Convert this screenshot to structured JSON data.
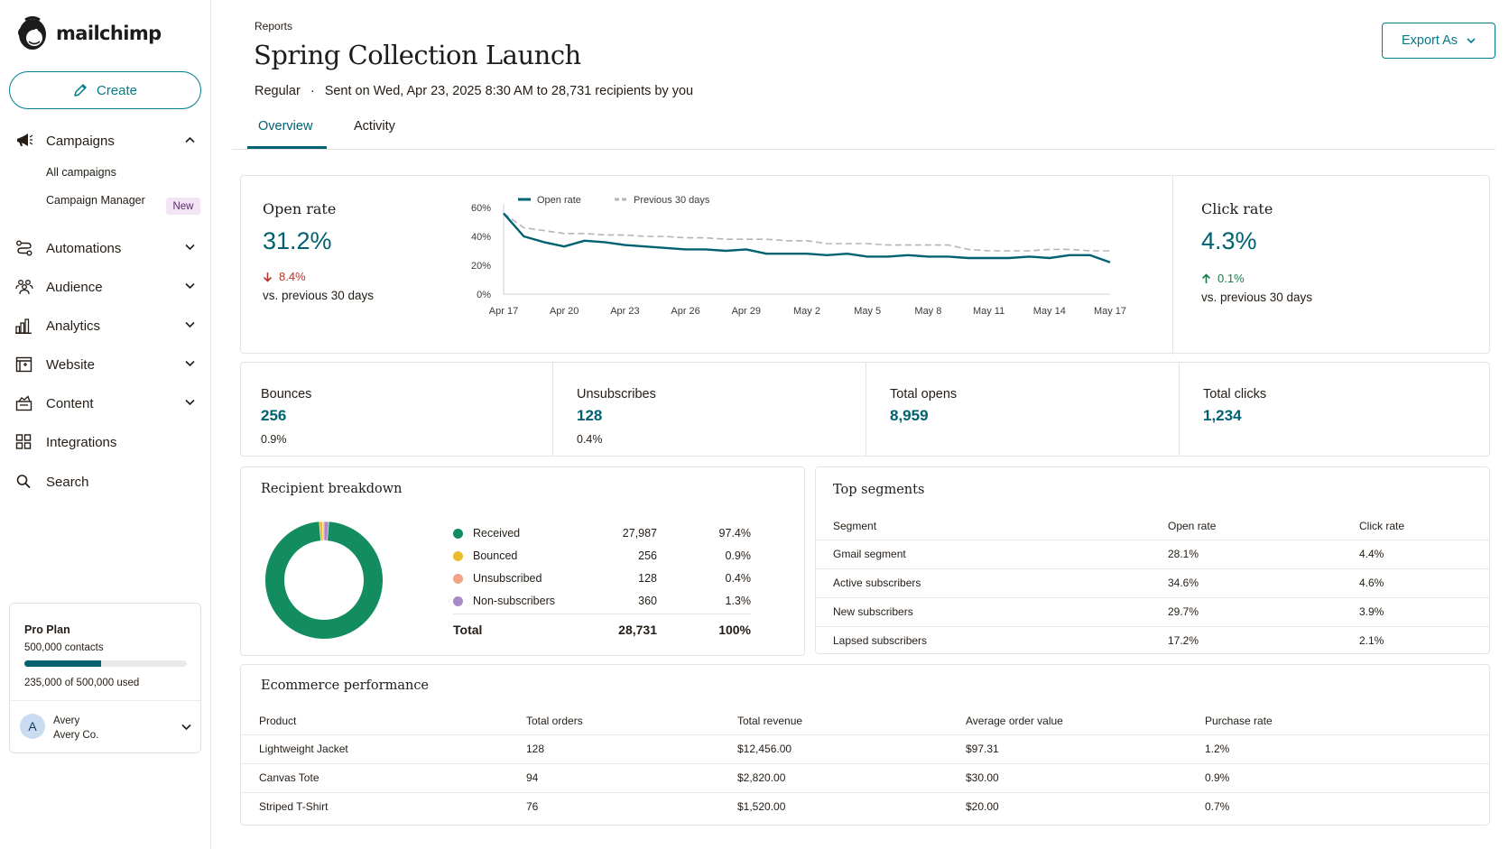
{
  "app": {
    "name": "mailchimp"
  },
  "sidebar": {
    "create_label": "Create",
    "items": [
      {
        "label": "Campaigns",
        "icon": "megaphone-icon",
        "expanded": true
      },
      {
        "label": "Automations",
        "icon": "automation-icon"
      },
      {
        "label": "Audience",
        "icon": "audience-icon"
      },
      {
        "label": "Analytics",
        "icon": "bar-chart-icon"
      },
      {
        "label": "Website",
        "icon": "website-icon"
      },
      {
        "label": "Content",
        "icon": "content-icon"
      },
      {
        "label": "Integrations",
        "icon": "grid-icon"
      },
      {
        "label": "Search",
        "icon": "search-icon"
      }
    ],
    "campaign_subitems": [
      {
        "label": "All campaigns"
      },
      {
        "label": "Campaign Manager",
        "badge": "New"
      }
    ],
    "plan": {
      "name": "Pro Plan",
      "contacts": "500,000 contacts",
      "usage_fraction": 0.47,
      "used_text": "235,000 of 500,000 used"
    },
    "user": {
      "initial": "A",
      "name": "Avery",
      "org": "Avery Co."
    }
  },
  "header": {
    "breadcrumb": "Reports",
    "title": "Spring Collection Launch",
    "type": "Regular",
    "separator": "·",
    "sent_info": "Sent on Wed, Apr 23, 2025 8:30 AM to 28,731 recipients by you",
    "export_label": "Export As",
    "tabs": [
      {
        "label": "Overview",
        "active": true
      },
      {
        "label": "Activity",
        "active": false
      }
    ]
  },
  "open_rate": {
    "title": "Open rate",
    "value": "31.2%",
    "delta": "8.4%",
    "delta_direction": "down",
    "comparison": "vs. previous 30 days"
  },
  "click_rate": {
    "title": "Click rate",
    "value": "4.3%",
    "delta": "0.1%",
    "delta_direction": "up",
    "comparison": "vs. previous 30 days"
  },
  "chart_data": {
    "type": "line",
    "x": [
      "Apr 17",
      "Apr 18",
      "Apr 19",
      "Apr 20",
      "Apr 21",
      "Apr 22",
      "Apr 23",
      "Apr 24",
      "Apr 25",
      "Apr 26",
      "Apr 27",
      "Apr 28",
      "Apr 29",
      "Apr 30",
      "May 1",
      "May 2",
      "May 3",
      "May 4",
      "May 5",
      "May 6",
      "May 7",
      "May 8",
      "May 9",
      "May 10",
      "May 11",
      "May 12",
      "May 13",
      "May 14",
      "May 15",
      "May 16",
      "May 17"
    ],
    "x_ticks": [
      "Apr 17",
      "Apr 20",
      "Apr 23",
      "Apr 26",
      "Apr 29",
      "May 2",
      "May 5",
      "May 8",
      "May 11",
      "May 14",
      "May 17"
    ],
    "y_ticks": [
      "0%",
      "20%",
      "40%",
      "60%"
    ],
    "ylim": [
      0,
      60
    ],
    "series": [
      {
        "name": "Open rate",
        "color": "#006170",
        "values": [
          56,
          40,
          36,
          33,
          37,
          36,
          34,
          33,
          32,
          31,
          31,
          30,
          31,
          28,
          28,
          28,
          27,
          28,
          26,
          26,
          27,
          26,
          26,
          25,
          25,
          25,
          26,
          25,
          27,
          27,
          22
        ]
      },
      {
        "name": "Previous 30 days",
        "color": "#b5b5b5",
        "dashed": true,
        "values": [
          56,
          46,
          44,
          42,
          42,
          41,
          41,
          40,
          40,
          39,
          39,
          38,
          38,
          38,
          37,
          37,
          35,
          35,
          35,
          34,
          34,
          34,
          34,
          31,
          30,
          30,
          30,
          31,
          31,
          30,
          30
        ]
      }
    ],
    "legend_position": "top-left"
  },
  "stats": [
    {
      "label": "Bounces",
      "value": "256",
      "pct": "0.9%"
    },
    {
      "label": "Unsubscribes",
      "value": "128",
      "pct": "0.4%"
    },
    {
      "label": "Total opens",
      "value": "8,959"
    },
    {
      "label": "Total clicks",
      "value": "1,234"
    }
  ],
  "recipients": {
    "title": "Recipient breakdown",
    "rows": [
      {
        "label": "Received",
        "count": "27,987",
        "pct": "97.4%",
        "value": 97.4,
        "color": "#138d5f"
      },
      {
        "label": "Bounced",
        "count": "256",
        "pct": "0.9%",
        "value": 0.9,
        "color": "#e9bd2e"
      },
      {
        "label": "Unsubscribed",
        "count": "128",
        "pct": "0.4%",
        "value": 0.4,
        "color": "#f0a386"
      },
      {
        "label": "Non-subscribers",
        "count": "360",
        "pct": "1.3%",
        "value": 1.3,
        "color": "#a98ac9"
      }
    ],
    "total_label": "Total",
    "total_count": "28,731",
    "total_pct": "100%"
  },
  "segments": {
    "title": "Top segments",
    "headers": [
      "Segment",
      "Open rate",
      "Click rate"
    ],
    "rows": [
      [
        "Gmail segment",
        "28.1%",
        "4.4%"
      ],
      [
        "Active subscribers",
        "34.6%",
        "4.6%"
      ],
      [
        "New subscribers",
        "29.7%",
        "3.9%"
      ],
      [
        "Lapsed subscribers",
        "17.2%",
        "2.1%"
      ]
    ]
  },
  "ecommerce": {
    "title": "Ecommerce performance",
    "headers": [
      "Product",
      "Total orders",
      "Total revenue",
      "Average order value",
      "Purchase rate"
    ],
    "rows": [
      [
        "Lightweight Jacket",
        "128",
        "$12,456.00",
        "$97.31",
        "1.2%"
      ],
      [
        "Canvas Tote",
        "94",
        "$2,820.00",
        "$30.00",
        "0.9%"
      ],
      [
        "Striped T-Shirt",
        "76",
        "$1,520.00",
        "$20.00",
        "0.7%"
      ]
    ]
  }
}
